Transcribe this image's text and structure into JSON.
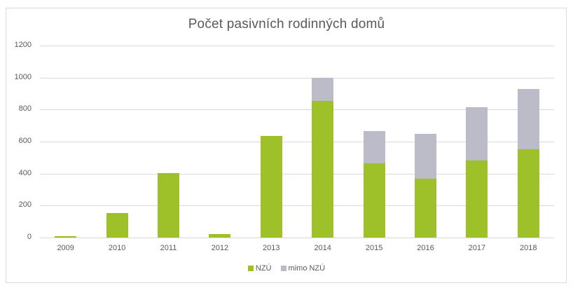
{
  "chart_data": {
    "type": "bar",
    "stacked": true,
    "title": "Počet pasivních rodinných domů",
    "xlabel": "",
    "ylabel": "",
    "ylim": [
      0,
      1200
    ],
    "yticks": [
      0,
      200,
      400,
      600,
      800,
      1000,
      1200
    ],
    "grid": true,
    "legend_position": "bottom",
    "categories": [
      "2009",
      "2010",
      "2011",
      "2012",
      "2013",
      "2014",
      "2015",
      "2016",
      "2017",
      "2018"
    ],
    "series": [
      {
        "name": "NZÚ",
        "color": "#9ec12a",
        "values": [
          8,
          155,
          402,
          20,
          637,
          852,
          464,
          368,
          482,
          552
        ]
      },
      {
        "name": "mimo NZÚ",
        "color": "#bcbcc8",
        "values": [
          0,
          0,
          0,
          0,
          0,
          148,
          202,
          280,
          333,
          376
        ]
      }
    ]
  },
  "labels": {
    "title": "Počet pasivních rodinných domů",
    "legend": [
      "NZÚ",
      "mimo NZÚ"
    ]
  }
}
